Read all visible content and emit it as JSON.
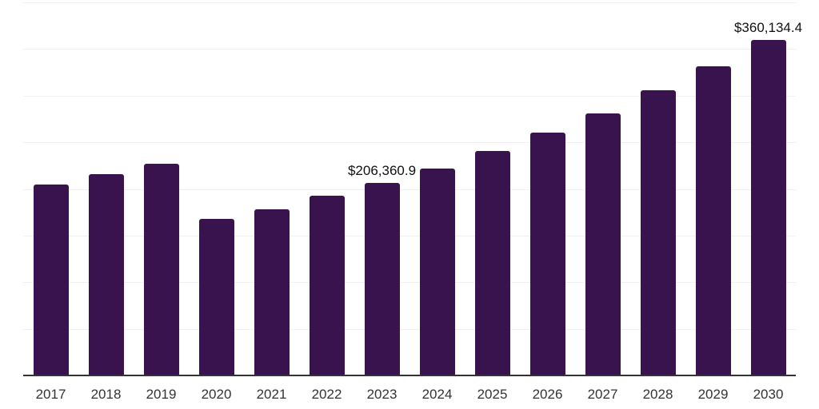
{
  "chart_data": {
    "type": "bar",
    "title": "",
    "xlabel": "",
    "ylabel": "",
    "categories": [
      "2017",
      "2018",
      "2019",
      "2020",
      "2021",
      "2022",
      "2023",
      "2024",
      "2025",
      "2026",
      "2027",
      "2028",
      "2029",
      "2030"
    ],
    "values": [
      205000,
      215500,
      227000,
      167500,
      178000,
      192500,
      206360.9,
      222000,
      240500,
      260000,
      281000,
      305500,
      331500,
      360134.4
    ],
    "data_labels": [
      {
        "category": "2023",
        "text": "$206,360.9"
      },
      {
        "category": "2030",
        "text": "$360,134.4"
      }
    ],
    "ylim": [
      0,
      400000
    ],
    "gridline_step": 50000,
    "grid": "horizontal",
    "legend": "none",
    "colors": {
      "bar": "#38134E",
      "gridline": "#f0f0f0",
      "axis_line": "#333333",
      "tick_label": "#333333",
      "data_label": "#111111",
      "background": "#ffffff"
    }
  }
}
